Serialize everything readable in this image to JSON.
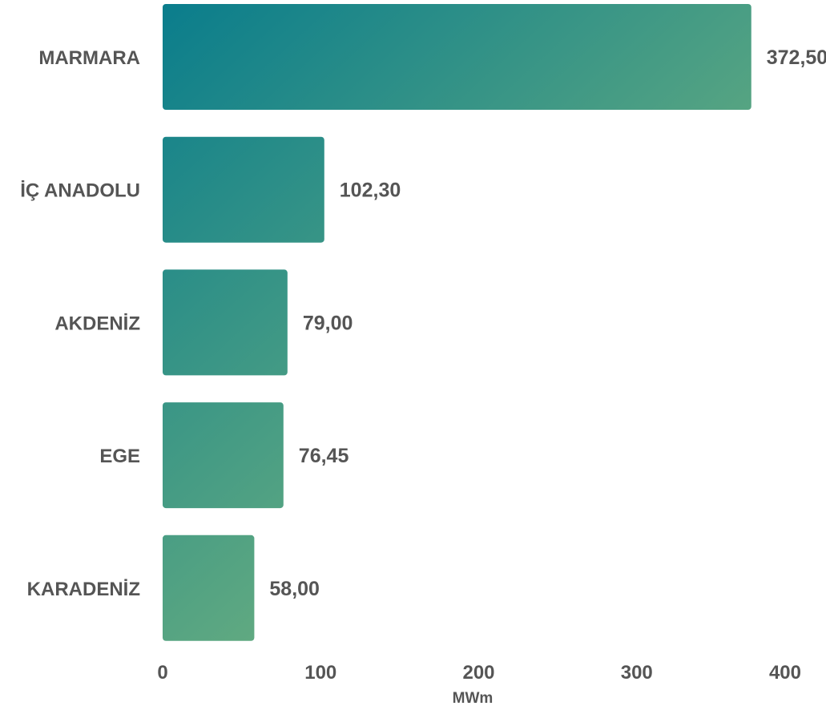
{
  "chart_data": {
    "type": "bar",
    "orientation": "horizontal",
    "categories": [
      "MARMARA",
      "İÇ ANADOLU",
      "AKDENİZ",
      "EGE",
      "KARADENİZ"
    ],
    "values": [
      372.5,
      102.3,
      79.0,
      76.45,
      58.0
    ],
    "value_labels": [
      "372,50",
      "102,30",
      "79,00",
      "76,45",
      "58,00"
    ],
    "xlabel": "MWm",
    "xlim": [
      0,
      400
    ],
    "x_ticks": [
      0,
      100,
      200,
      300,
      400
    ],
    "x_tick_labels": [
      "0",
      "100",
      "200",
      "300",
      "400"
    ],
    "grid": false,
    "legend": "none",
    "colors": {
      "gradient_start": "#0a7d8c",
      "gradient_end": "#94c47a",
      "text": "#555555"
    }
  }
}
